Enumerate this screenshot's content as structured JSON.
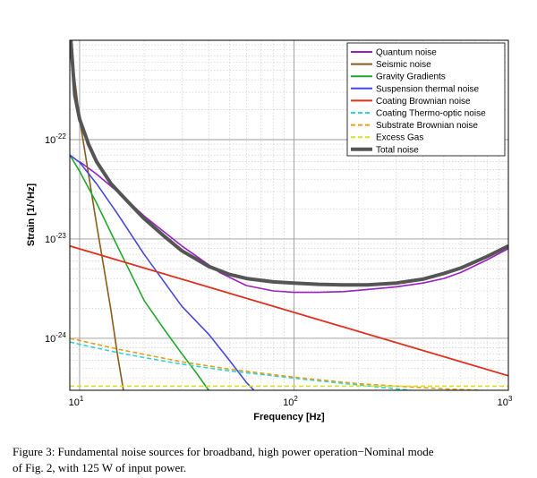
{
  "chart_data": {
    "type": "line",
    "xscale": "log",
    "yscale": "log",
    "xlim": [
      9,
      1000
    ],
    "ylim": [
      3e-25,
      1e-21
    ],
    "xlabel": "Frequency [Hz]",
    "ylabel": "Strain [1/√Hz]",
    "xticks": [
      {
        "base": "10",
        "exp": "1",
        "value": 10
      },
      {
        "base": "10",
        "exp": "2",
        "value": 100
      },
      {
        "base": "10",
        "exp": "3",
        "value": 1000
      }
    ],
    "yticks": [
      {
        "base": "10",
        "exp": "-22",
        "value": 1e-22
      },
      {
        "base": "10",
        "exp": "-23",
        "value": 1e-23
      },
      {
        "base": "10",
        "exp": "-24",
        "value": 1e-24
      }
    ],
    "legend_position": "top-right",
    "series": [
      {
        "name": "Quantum noise",
        "color": "#9b1fc1",
        "dash": "solid",
        "width": 1.6,
        "x": [
          10,
          12,
          15,
          20,
          30,
          45,
          60,
          80,
          100,
          130,
          170,
          220,
          300,
          400,
          500,
          600,
          800,
          1000
        ],
        "y": [
          6e-23,
          4.5e-23,
          3e-23,
          1.7e-23,
          8.5e-24,
          4.6e-24,
          3.4e-24,
          3e-24,
          2.9e-24,
          2.9e-24,
          2.95e-24,
          3.1e-24,
          3.3e-24,
          3.6e-24,
          4e-24,
          4.6e-24,
          6.2e-24,
          8e-24
        ]
      },
      {
        "name": "Seismic noise",
        "color": "#8b5a1a",
        "dash": "solid",
        "width": 1.6,
        "x": [
          9.2,
          10,
          11,
          12,
          13,
          14,
          15,
          16
        ],
        "y": [
          7e-22,
          1.6e-22,
          4.5e-23,
          1.4e-23,
          5e-24,
          1.9e-24,
          7e-25,
          3e-25
        ]
      },
      {
        "name": "Gravity Gradients",
        "color": "#1fa82a",
        "dash": "solid",
        "width": 1.6,
        "x": [
          9,
          10,
          12,
          15,
          20,
          25,
          30,
          35,
          40
        ],
        "y": [
          7e-23,
          4.8e-23,
          2.3e-23,
          8.5e-24,
          2.4e-24,
          1.2e-24,
          7e-25,
          4.5e-25,
          3e-25
        ]
      },
      {
        "name": "Suspension thermal noise",
        "color": "#4747dd",
        "dash": "solid",
        "width": 1.6,
        "x": [
          9,
          10,
          12,
          15,
          20,
          30,
          40,
          50,
          60,
          65
        ],
        "y": [
          7e-23,
          5.9e-23,
          3.6e-23,
          1.8e-23,
          7e-24,
          2.1e-24,
          1.1e-24,
          6e-25,
          3.6e-25,
          3e-25
        ]
      },
      {
        "name": "Coating Brownian noise",
        "color": "#e0301e",
        "dash": "solid",
        "width": 1.8,
        "x": [
          9,
          1000
        ],
        "y": [
          8.5e-24,
          4.2e-25
        ]
      },
      {
        "name": "Coating Thermo-optic noise",
        "color": "#2fd4d4",
        "dash": "dashed",
        "width": 1.6,
        "x": [
          9,
          10,
          15,
          20,
          30,
          50,
          80,
          120,
          200,
          300,
          350
        ],
        "y": [
          9.2e-25,
          8.7e-25,
          7.2e-25,
          6.4e-25,
          5.5e-25,
          4.7e-25,
          4.2e-25,
          3.8e-25,
          3.4e-25,
          3.1e-25,
          3e-25
        ]
      },
      {
        "name": "Substrate Brownian noise",
        "color": "#e0a020",
        "dash": "dashed",
        "width": 1.6,
        "x": [
          9,
          10,
          15,
          20,
          30,
          50,
          80,
          120,
          200,
          300,
          500,
          750
        ],
        "y": [
          1e-24,
          9.5e-25,
          7.8e-25,
          6.9e-25,
          5.8e-25,
          4.9e-25,
          4.3e-25,
          3.9e-25,
          3.5e-25,
          3.3e-25,
          3.1e-25,
          3e-25
        ]
      },
      {
        "name": "Excess Gas",
        "color": "#d8e020",
        "dash": "dashed",
        "width": 1.6,
        "x": [
          9,
          1000
        ],
        "y": [
          3.3e-25,
          3.3e-25
        ]
      },
      {
        "name": "Total noise",
        "color": "#555555",
        "dash": "solid",
        "width": 4,
        "x": [
          9.1,
          9.5,
          10,
          11,
          12,
          14,
          17,
          20,
          25,
          30,
          40,
          50,
          60,
          80,
          100,
          130,
          170,
          220,
          300,
          400,
          500,
          600,
          800,
          1000
        ],
        "y": [
          1e-21,
          2.8e-22,
          1.6e-22,
          9e-23,
          6e-23,
          3.6e-23,
          2.3e-23,
          1.6e-23,
          1.05e-23,
          7.6e-24,
          5.3e-24,
          4.4e-24,
          4e-24,
          3.7e-24,
          3.6e-24,
          3.5e-24,
          3.45e-24,
          3.45e-24,
          3.6e-24,
          3.95e-24,
          4.5e-24,
          5.1e-24,
          6.7e-24,
          8.5e-24
        ]
      }
    ]
  },
  "caption": {
    "line1": "Figure 3: Fundamental noise sources for broadband, high power operation−Nominal mode",
    "line2": "of Fig. 2, with 125 W of input power."
  }
}
